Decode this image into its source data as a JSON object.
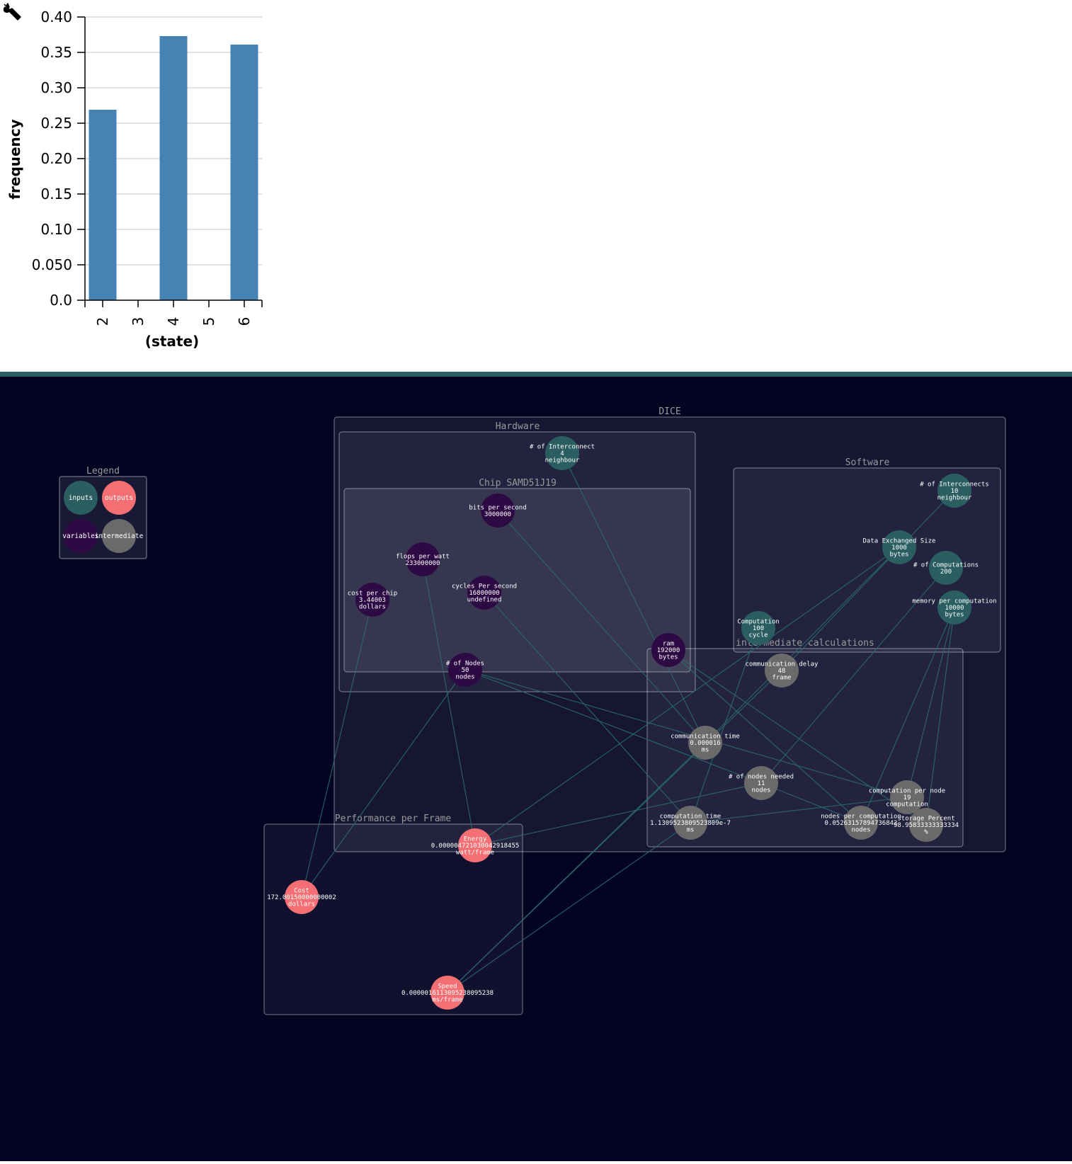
{
  "toolbar": {
    "settings_icon": "wrench-icon"
  },
  "chart_data": {
    "type": "bar",
    "categories": [
      "2",
      "3",
      "4",
      "5",
      "6"
    ],
    "values": [
      0.269,
      0,
      0.373,
      0,
      0.361
    ],
    "xlabel": "(state)",
    "ylabel": "frequency",
    "ylim": [
      0,
      0.4
    ],
    "yticks": [
      "0.0",
      "0.050",
      "0.10",
      "0.15",
      "0.20",
      "0.25",
      "0.30",
      "0.35",
      "0.40"
    ],
    "grid": true,
    "bar_color": "#4682b4"
  },
  "graph": {
    "colors": {
      "background": "#030322",
      "inputs": "#2a5e61",
      "outputs": "#f46f73",
      "variables": "#2d0a44",
      "intermediate": "#6a6a6a",
      "edge": "#2a6b6e"
    },
    "legend": {
      "title": "Legend",
      "items": [
        {
          "label": "inputs",
          "kind": "inputs"
        },
        {
          "label": "outputs",
          "kind": "outputs"
        },
        {
          "label": "variables",
          "kind": "variables"
        },
        {
          "label": "intermediate",
          "kind": "intermediate"
        }
      ]
    },
    "groups": [
      {
        "id": "dice",
        "title": "DICE"
      },
      {
        "id": "hardware",
        "title": "Hardware"
      },
      {
        "id": "software",
        "title": "Software"
      },
      {
        "id": "chip",
        "title": "Chip SAMD51J19"
      },
      {
        "id": "intermediate",
        "title": "intermediate calculations"
      },
      {
        "id": "performance",
        "title": "Performance per Frame"
      }
    ],
    "nodes": [
      {
        "id": "interconnect4",
        "kind": "inputs",
        "lines": [
          "# of Interconnect",
          "4",
          "neighbour"
        ]
      },
      {
        "id": "interconnects10",
        "kind": "inputs",
        "lines": [
          "# of Interconnects",
          "10",
          "neighbour"
        ]
      },
      {
        "id": "dataSize",
        "kind": "inputs",
        "lines": [
          "Data Exchanged Size",
          "1000",
          "bytes"
        ]
      },
      {
        "id": "computations",
        "kind": "inputs",
        "lines": [
          "# of Computations",
          "200"
        ]
      },
      {
        "id": "memory",
        "kind": "inputs",
        "lines": [
          "memory per computation",
          "10000",
          "bytes"
        ]
      },
      {
        "id": "computation",
        "kind": "inputs",
        "lines": [
          "Computation",
          "100",
          "cycle"
        ]
      },
      {
        "id": "bits",
        "kind": "variables",
        "lines": [
          "bits per second",
          "3000000"
        ]
      },
      {
        "id": "flops",
        "kind": "variables",
        "lines": [
          "flops per watt",
          "233000000"
        ]
      },
      {
        "id": "cycles",
        "kind": "variables",
        "lines": [
          "cycles Per second",
          "16800000",
          "undefined"
        ]
      },
      {
        "id": "cost",
        "kind": "variables",
        "lines": [
          "cost per chip",
          "3.44003",
          "dollars"
        ]
      },
      {
        "id": "ram",
        "kind": "variables",
        "lines": [
          "ram",
          "192000",
          "bytes"
        ]
      },
      {
        "id": "nodes",
        "kind": "variables",
        "lines": [
          "# of Nodes",
          "50",
          "nodes"
        ]
      },
      {
        "id": "commDelay",
        "kind": "intermediate",
        "lines": [
          "communication delay",
          "48",
          "frame"
        ]
      },
      {
        "id": "commTime",
        "kind": "intermediate",
        "lines": [
          "communication time",
          "0.000016",
          "ms"
        ]
      },
      {
        "id": "nodesNeeded",
        "kind": "intermediate",
        "lines": [
          "# of nodes needed",
          "11",
          "nodes"
        ]
      },
      {
        "id": "compPerNode",
        "kind": "intermediate",
        "lines": [
          "computation per node",
          "19",
          "computation"
        ]
      },
      {
        "id": "compTime",
        "kind": "intermediate",
        "lines": [
          "computation time",
          "1.1309523809523809e-7",
          "ms"
        ]
      },
      {
        "id": "nodesPerComp",
        "kind": "intermediate",
        "lines": [
          "nodes per computation",
          "0.05263157894736842",
          "nodes"
        ]
      },
      {
        "id": "storage",
        "kind": "intermediate",
        "lines": [
          "storage Percent",
          "98.95833333333334",
          "%"
        ]
      },
      {
        "id": "energy",
        "kind": "outputs",
        "lines": [
          "Energy",
          "0.000004721030042918455",
          "watt/frame"
        ]
      },
      {
        "id": "costOut",
        "kind": "outputs",
        "lines": [
          "Cost",
          "172.00150000000002",
          "dollars"
        ]
      },
      {
        "id": "speed",
        "kind": "outputs",
        "lines": [
          "Speed",
          "0.0000016113095238095238",
          "ms/frame"
        ]
      }
    ],
    "edges": [
      [
        "interconnect4",
        "commTime"
      ],
      [
        "interconnects10",
        "commDelay"
      ],
      [
        "dataSize",
        "commTime"
      ],
      [
        "dataSize",
        "energy"
      ],
      [
        "computations",
        "nodesNeeded"
      ],
      [
        "memory",
        "compPerNode"
      ],
      [
        "memory",
        "nodesPerComp"
      ],
      [
        "memory",
        "storage"
      ],
      [
        "computation",
        "compTime"
      ],
      [
        "bits",
        "commTime"
      ],
      [
        "flops",
        "energy"
      ],
      [
        "cycles",
        "compTime"
      ],
      [
        "cost",
        "costOut"
      ],
      [
        "ram",
        "storage"
      ],
      [
        "ram",
        "nodesPerComp"
      ],
      [
        "nodes",
        "costOut"
      ],
      [
        "nodes",
        "compPerNode"
      ],
      [
        "nodes",
        "nodesNeeded"
      ],
      [
        "commDelay",
        "speed"
      ],
      [
        "commTime",
        "speed"
      ],
      [
        "compTime",
        "speed"
      ],
      [
        "nodesNeeded",
        "energy"
      ],
      [
        "nodesNeeded",
        "nodesPerComp"
      ],
      [
        "compPerNode",
        "compTime"
      ]
    ]
  }
}
